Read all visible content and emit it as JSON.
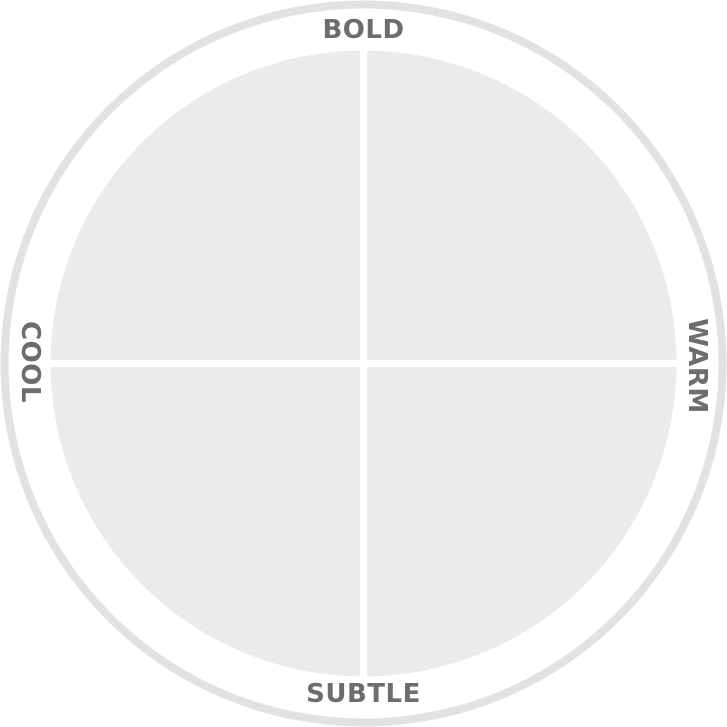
{
  "diagram": {
    "labels": {
      "top": "BOLD",
      "bottom": "SUBTLE",
      "left": "COOL",
      "right": "WARM"
    }
  },
  "colors": {
    "background": "#ffffff",
    "outer_ring": "#e2e2e2",
    "ring_band": "#ffffff",
    "quadrant_fill": "#ebebeb",
    "divider": "#ffffff",
    "label_text": "#6d6d6d"
  }
}
